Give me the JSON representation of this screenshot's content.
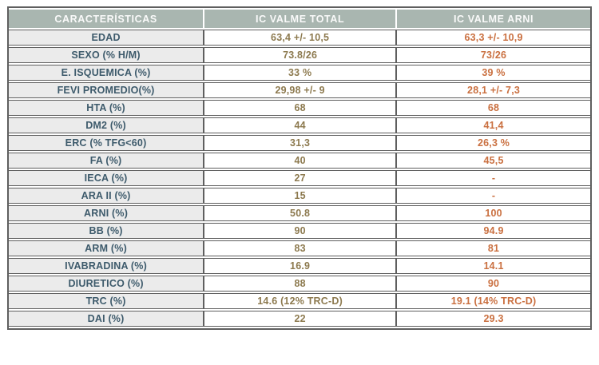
{
  "colors": {
    "page-bg": "#ffffff",
    "border": "#5f5f5f",
    "header-bg": "#a9b6b0",
    "header-text": "#fafafa",
    "label-bg": "#ebebeb",
    "label-text": "#3d5a6b",
    "total-text": "#8d7a4f",
    "arni-text": "#ca7040"
  },
  "chart_data": {
    "type": "table",
    "columns": [
      "CARACTERÍSTICAS",
      "IC VALME TOTAL",
      "IC VALME ARNI"
    ],
    "rows": [
      {
        "label": "EDAD",
        "total": "63,4 +/- 10,5",
        "arni": "63,3 +/- 10,9"
      },
      {
        "label": "SEXO (% H/M)",
        "total": "73.8/26",
        "arni": "73/26"
      },
      {
        "label": "E. ISQUEMICA (%)",
        "total": "33 %",
        "arni": "39 %"
      },
      {
        "label": "FEVI PROMEDIO(%)",
        "total": "29,98 +/- 9",
        "arni": "28,1 +/- 7,3"
      },
      {
        "label": "HTA (%)",
        "total": "68",
        "arni": "68"
      },
      {
        "label": "DM2 (%)",
        "total": "44",
        "arni": "41,4"
      },
      {
        "label": "ERC (% TFG<60)",
        "total": "31,3",
        "arni": "26,3 %"
      },
      {
        "label": "FA (%)",
        "total": "40",
        "arni": "45,5"
      },
      {
        "label": "IECA (%)",
        "total": "27",
        "arni": "-"
      },
      {
        "label": "ARA II (%)",
        "total": "15",
        "arni": "-"
      },
      {
        "label": "ARNI (%)",
        "total": "50.8",
        "arni": "100"
      },
      {
        "label": "BB (%)",
        "total": "90",
        "arni": "94.9"
      },
      {
        "label": "ARM (%)",
        "total": "83",
        "arni": "81"
      },
      {
        "label": "IVABRADINA (%)",
        "total": "16.9",
        "arni": "14.1"
      },
      {
        "label": "DIURETICO (%)",
        "total": "88",
        "arni": "90"
      },
      {
        "label": "TRC (%)",
        "total": "14.6 (12% TRC-D)",
        "arni": "19.1 (14% TRC-D)"
      },
      {
        "label": "DAI (%)",
        "total": "22",
        "arni": "29.3"
      }
    ]
  }
}
